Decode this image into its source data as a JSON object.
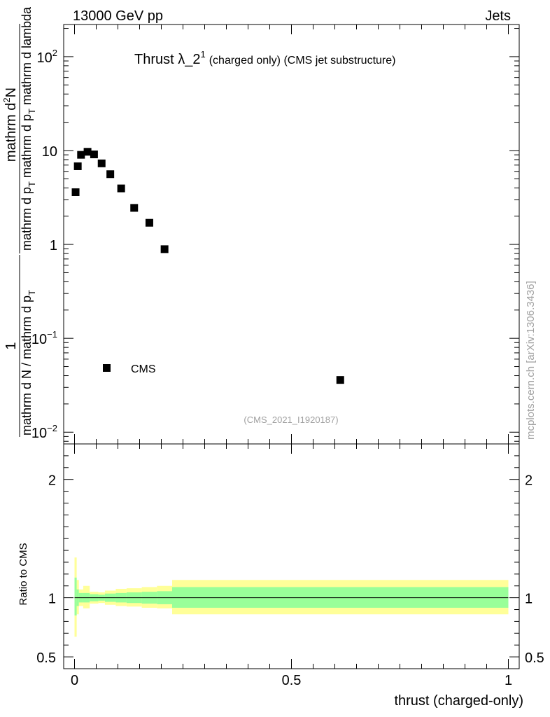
{
  "header": {
    "left": "13000 GeV pp",
    "right": "Jets"
  },
  "plot": {
    "title_main": "Thrust λ_2",
    "title_sup": "1",
    "title_suffix": "(charged only) (CMS jet substructure)",
    "watermark": "(CMS_2021_I1920187)",
    "side_label": "mcplots.cern.ch [arXiv:1306.3436]",
    "legend_label": "CMS"
  },
  "ylabel_main": {
    "frac1_num": "1",
    "frac1_den_a": "mathrm d N / mathrm d p",
    "frac1_den_sub": "T",
    "frac2_num_a": "mathrm d",
    "frac2_num_sup": "2",
    "frac2_num_b": "N",
    "frac2_den_a": "mathrm d p",
    "frac2_den_sub1": "T",
    "frac2_den_b": " mathrm d p",
    "frac2_den_sub2": "T",
    "frac2_den_c": " mathrm d lambda"
  },
  "chart_data": [
    {
      "type": "scatter",
      "log_y": true,
      "ylim": [
        0.0075,
        220
      ],
      "xlim": [
        -0.025,
        1.025
      ],
      "y_ticks": [
        {
          "value": 0.01,
          "base": "10",
          "exp": "−2"
        },
        {
          "value": 0.1,
          "base": "10",
          "exp": "−1"
        },
        {
          "value": 1,
          "base": "1",
          "exp": ""
        },
        {
          "value": 10,
          "base": "10",
          "exp": ""
        },
        {
          "value": 100,
          "base": "10",
          "exp": "2"
        }
      ],
      "series": [
        {
          "name": "CMS",
          "color": "#000000",
          "x": [
            0.0025,
            0.0075,
            0.015,
            0.03,
            0.045,
            0.0625,
            0.0825,
            0.1075,
            0.1375,
            0.1725,
            0.2075,
            0.6125
          ],
          "y": [
            3.6,
            6.8,
            9.0,
            9.7,
            9.1,
            7.3,
            5.6,
            3.95,
            2.45,
            1.7,
            0.89,
            0.036
          ]
        }
      ]
    },
    {
      "type": "area",
      "ylabel": "Ratio to CMS",
      "xlabel": "thrust (charged-only)",
      "xlim": [
        -0.025,
        1.025
      ],
      "ylim": [
        0.4,
        2.3
      ],
      "y_ticks": [
        0.5,
        1,
        2
      ],
      "y_tick_labels": [
        "0.5",
        "1",
        "2"
      ],
      "x_ticks": [
        0,
        0.5,
        1
      ],
      "x_tick_labels": [
        "0",
        "0.5",
        "1"
      ],
      "colors": {
        "inner": "#99ff99",
        "outer": "#ffff99",
        "line": "#000000"
      },
      "bins": [
        {
          "x0": 0.0,
          "x1": 0.005,
          "inner": [
            0.85,
            1.17
          ],
          "outer": [
            0.67,
            1.34
          ]
        },
        {
          "x0": 0.005,
          "x1": 0.01,
          "inner": [
            0.93,
            1.07
          ],
          "outer": [
            0.86,
            1.15
          ]
        },
        {
          "x0": 0.01,
          "x1": 0.02,
          "inner": [
            0.96,
            1.04
          ],
          "outer": [
            0.93,
            1.07
          ]
        },
        {
          "x0": 0.02,
          "x1": 0.035,
          "inner": [
            0.96,
            1.04
          ],
          "outer": [
            0.91,
            1.1
          ]
        },
        {
          "x0": 0.035,
          "x1": 0.055,
          "inner": [
            0.97,
            1.03
          ],
          "outer": [
            0.95,
            1.05
          ]
        },
        {
          "x0": 0.055,
          "x1": 0.07,
          "inner": [
            0.975,
            1.025
          ],
          "outer": [
            0.955,
            1.045
          ]
        },
        {
          "x0": 0.07,
          "x1": 0.095,
          "inner": [
            0.965,
            1.035
          ],
          "outer": [
            0.94,
            1.06
          ]
        },
        {
          "x0": 0.095,
          "x1": 0.12,
          "inner": [
            0.96,
            1.04
          ],
          "outer": [
            0.93,
            1.075
          ]
        },
        {
          "x0": 0.12,
          "x1": 0.155,
          "inner": [
            0.955,
            1.045
          ],
          "outer": [
            0.925,
            1.08
          ]
        },
        {
          "x0": 0.155,
          "x1": 0.19,
          "inner": [
            0.95,
            1.05
          ],
          "outer": [
            0.915,
            1.09
          ]
        },
        {
          "x0": 0.19,
          "x1": 0.225,
          "inner": [
            0.945,
            1.055
          ],
          "outer": [
            0.91,
            1.1
          ]
        },
        {
          "x0": 0.225,
          "x1": 1.0,
          "inner": [
            0.915,
            1.09
          ],
          "outer": [
            0.86,
            1.15
          ]
        }
      ]
    }
  ]
}
